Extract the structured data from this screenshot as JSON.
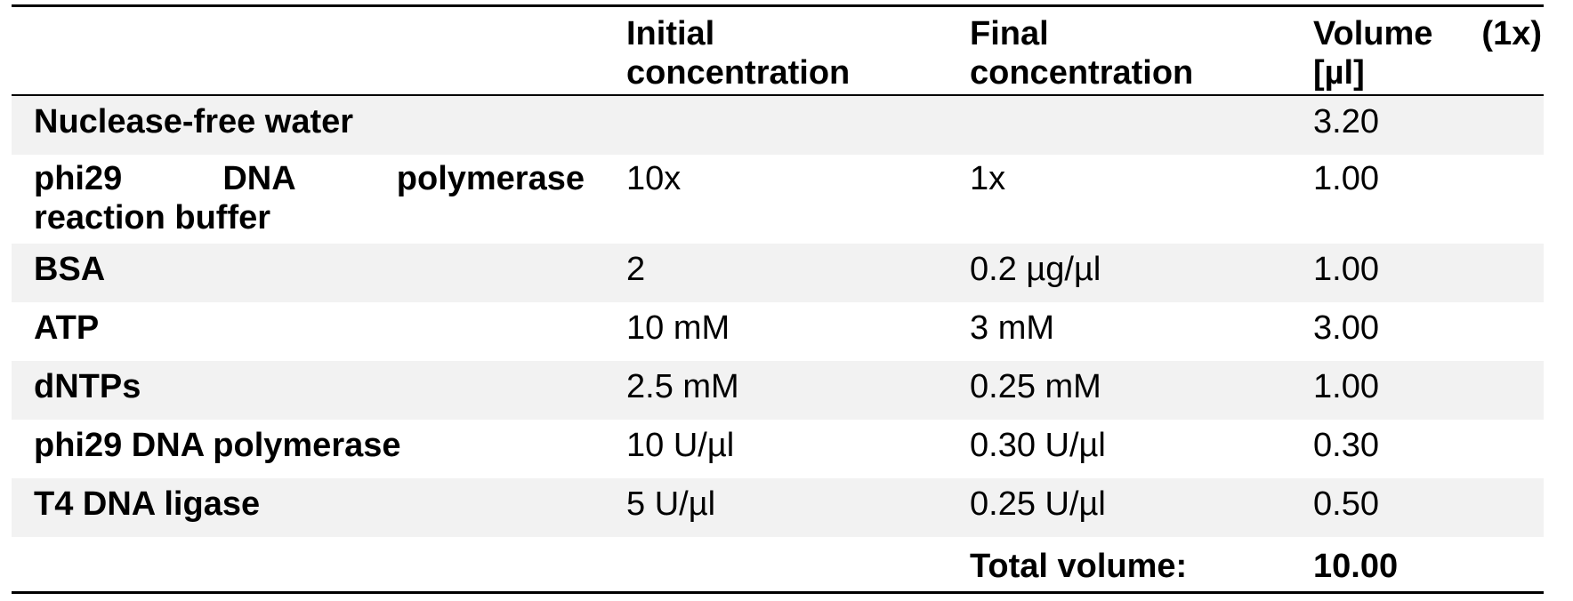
{
  "table": {
    "headers": {
      "col1_line1": "Initial",
      "col1_line2": "concentration",
      "col2_line1": "Final",
      "col2_line2": "concentration",
      "col3_line1_a": "Volume",
      "col3_line1_b": "(1x)",
      "col3_line2": "[µl]"
    },
    "rows": [
      {
        "component": "Nuclease-free water",
        "initial": "",
        "final": "",
        "volume": "3.20"
      },
      {
        "component_line1_a": "phi29",
        "component_line1_b": "DNA",
        "component_line1_c": "polymerase",
        "component_line2": "reaction buffer",
        "initial": "10x",
        "final": "1x",
        "volume": "1.00"
      },
      {
        "component": "BSA",
        "initial": "2",
        "final": "0.2 µg/µl",
        "volume": "1.00"
      },
      {
        "component": "ATP",
        "initial": "10 mM",
        "final": "3 mM",
        "volume": "3.00"
      },
      {
        "component": "dNTPs",
        "initial": "2.5 mM",
        "final": "0.25 mM",
        "volume": "1.00"
      },
      {
        "component": "phi29 DNA polymerase",
        "initial": "10 U/µl",
        "final": "0.30 U/µl",
        "volume": "0.30"
      },
      {
        "component": "T4 DNA ligase",
        "initial": "5 U/µl",
        "final": "0.25 U/µl",
        "volume": "0.50"
      }
    ],
    "total": {
      "label": "Total volume:",
      "value": "10.00"
    }
  }
}
